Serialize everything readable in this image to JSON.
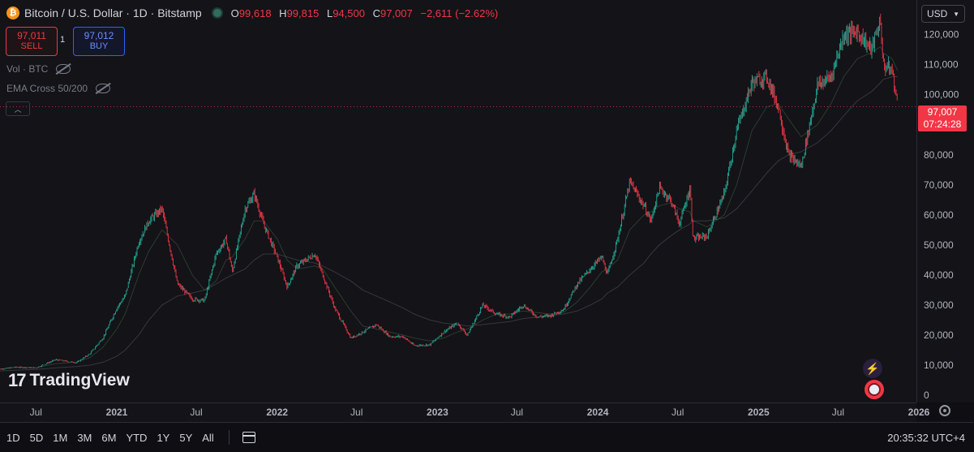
{
  "header": {
    "symbol": "Bitcoin / U.S. Dollar",
    "interval": "1D",
    "exchange": "Bitstamp",
    "ohlc": {
      "o_label": "O",
      "o_value": "99,618",
      "h_label": "H",
      "h_value": "99,815",
      "l_label": "L",
      "l_value": "94,500",
      "c_label": "C",
      "c_value": "97,007",
      "change": "−2,611 (−2.62%)"
    }
  },
  "trade": {
    "sell_price": "97,011",
    "sell_label": "SELL",
    "spread": "1",
    "buy_price": "97,012",
    "buy_label": "BUY"
  },
  "indicators": [
    "Vol · BTC",
    "EMA Cross 50/200"
  ],
  "currency": "USD",
  "last_price": {
    "price": "97,007",
    "countdown": "07:24:28"
  },
  "logo": "TradingView",
  "colors": {
    "up": "#22ab94",
    "down": "#f23645",
    "background": "#131318",
    "ema_fast": "#5d8a5a",
    "ema_slow": "#a5a8b0"
  },
  "range_buttons": [
    "1D",
    "5D",
    "1M",
    "3M",
    "6M",
    "YTD",
    "1Y",
    "5Y",
    "All"
  ],
  "clock": "20:35:32 UTC+4",
  "chart_data": {
    "type": "line",
    "style": "candlestick",
    "xlim": [
      "2020-04",
      "2026-03"
    ],
    "ylim": [
      0,
      128000
    ],
    "grid": false,
    "y_ticks": [
      0,
      10000,
      20000,
      30000,
      40000,
      50000,
      60000,
      70000,
      80000,
      90000,
      100000,
      110000,
      120000
    ],
    "y_tick_labels": [
      "0",
      "10,000",
      "20,000",
      "30,000",
      "40,000",
      "50,000",
      "60,000",
      "70,000",
      "80,000",
      "90,000",
      "100,000",
      "110,000",
      "120,000"
    ],
    "x_ticks": [
      {
        "date": "2020-07",
        "label": "Jul"
      },
      {
        "date": "2021-01",
        "label": "2021"
      },
      {
        "date": "2021-07",
        "label": "Jul"
      },
      {
        "date": "2022-01",
        "label": "2022"
      },
      {
        "date": "2022-07",
        "label": "Jul"
      },
      {
        "date": "2023-01",
        "label": "2023"
      },
      {
        "date": "2023-07",
        "label": "Jul"
      },
      {
        "date": "2024-01",
        "label": "2024"
      },
      {
        "date": "2024-07",
        "label": "Jul"
      },
      {
        "date": "2025-01",
        "label": "2025"
      },
      {
        "date": "2025-07",
        "label": "Jul"
      },
      {
        "date": "2026-01",
        "label": "2026"
      }
    ],
    "series": [
      {
        "x": [
          "2020-04-01",
          "2020-05-15",
          "2020-07-01",
          "2020-08-15",
          "2020-10-01",
          "2020-11-01",
          "2020-12-01",
          "2021-01-01",
          "2021-01-20",
          "2021-02-20",
          "2021-03-15",
          "2021-04-14",
          "2021-05-19",
          "2021-06-22",
          "2021-07-20",
          "2021-08-15",
          "2021-09-07",
          "2021-09-21",
          "2021-10-20",
          "2021-11-10",
          "2021-12-01",
          "2022-01-01",
          "2022-01-24",
          "2022-02-15",
          "2022-03-28",
          "2022-04-15",
          "2022-05-12",
          "2022-06-18",
          "2022-07-15",
          "2022-08-15",
          "2022-09-15",
          "2022-10-15",
          "2022-11-09",
          "2022-12-15",
          "2023-01-15",
          "2023-02-15",
          "2023-03-10",
          "2023-04-14",
          "2023-05-15",
          "2023-06-15",
          "2023-07-15",
          "2023-08-17",
          "2023-09-15",
          "2023-10-15",
          "2023-11-15",
          "2023-12-15",
          "2024-01-10",
          "2024-01-23",
          "2024-02-15",
          "2024-03-14",
          "2024-04-15",
          "2024-05-01",
          "2024-05-20",
          "2024-06-15",
          "2024-07-05",
          "2024-07-29",
          "2024-08-05",
          "2024-09-06",
          "2024-10-15",
          "2024-11-12",
          "2024-12-17",
          "2025-01-20",
          "2025-02-15",
          "2025-03-10",
          "2025-04-08",
          "2025-05-15",
          "2025-06-15",
          "2025-07-14",
          "2025-08-14",
          "2025-09-15",
          "2025-10-06",
          "2025-10-11",
          "2025-11-01",
          "2025-11-14"
        ],
        "y": [
          8500,
          9300,
          9100,
          11800,
          10800,
          13800,
          19200,
          29000,
          33000,
          51000,
          58000,
          62000,
          37000,
          32000,
          31500,
          47000,
          52000,
          41000,
          62000,
          67000,
          57000,
          46000,
          36000,
          43000,
          47000,
          40000,
          29000,
          19000,
          21000,
          23500,
          19500,
          19500,
          16500,
          16800,
          21000,
          24000,
          20000,
          30000,
          27000,
          26000,
          30000,
          26000,
          26500,
          28500,
          37000,
          42000,
          46000,
          40000,
          52000,
          71000,
          63000,
          58000,
          69000,
          65000,
          57000,
          69000,
          52000,
          53000,
          67000,
          88000,
          104000,
          106000,
          96000,
          80000,
          76000,
          103000,
          106000,
          120000,
          121000,
          115000,
          125000,
          110000,
          108000,
          96000
        ]
      }
    ],
    "ema_fast_y": [
      8500,
      9300,
      9100,
      10500,
      11000,
      12500,
      16000,
      22000,
      27000,
      40000,
      48000,
      55000,
      50000,
      40000,
      35000,
      38000,
      45000,
      46000,
      52000,
      58000,
      58000,
      52000,
      45000,
      42000,
      43000,
      42000,
      36000,
      28000,
      23000,
      22000,
      21000,
      20000,
      19000,
      18000,
      19000,
      21000,
      22000,
      25000,
      27000,
      27000,
      28000,
      27500,
      27000,
      27500,
      31000,
      36000,
      41000,
      42000,
      45000,
      55000,
      60000,
      61000,
      63000,
      64000,
      62000,
      61000,
      58000,
      56000,
      60000,
      70000,
      88000,
      96000,
      97000,
      92000,
      86000,
      90000,
      97000,
      106000,
      112000,
      114000,
      116000,
      114000,
      112000,
      108000
    ],
    "ema_slow_y": [
      8000,
      8300,
      8600,
      9100,
      9500,
      10000,
      11000,
      13000,
      15000,
      20000,
      25000,
      30000,
      33000,
      34000,
      35000,
      37000,
      39000,
      40000,
      42000,
      45000,
      47000,
      47000,
      46000,
      45000,
      44000,
      43000,
      41000,
      38000,
      35000,
      33000,
      31000,
      29000,
      27000,
      25000,
      24000,
      23500,
      23000,
      23500,
      24000,
      24500,
      25500,
      26000,
      26500,
      27000,
      28000,
      30000,
      32000,
      34000,
      36000,
      40000,
      44000,
      47000,
      50000,
      53000,
      55000,
      57000,
      58000,
      58000,
      59000,
      62000,
      68000,
      74000,
      78000,
      80000,
      81000,
      84000,
      88000,
      93000,
      98000,
      101000,
      104000,
      105000,
      106000,
      106000
    ]
  }
}
